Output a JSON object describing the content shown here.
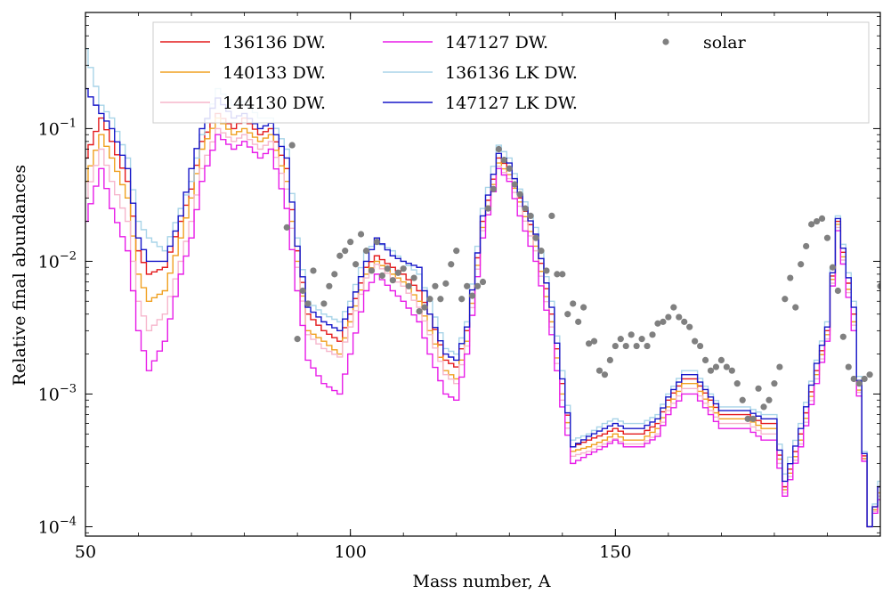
{
  "chart_data": {
    "type": "line",
    "title": "",
    "xlabel": "Mass number, A",
    "ylabel": "Relative final abundances",
    "xlim": [
      50,
      200
    ],
    "ylim": [
      8.5e-05,
      0.75
    ],
    "yscale": "log",
    "grid": false,
    "legend_placement": "top",
    "legend_columns": 3,
    "x_ticks": [
      {
        "value": 50,
        "label": "50"
      },
      {
        "value": 100,
        "label": "100"
      },
      {
        "value": 150,
        "label": "150"
      }
    ],
    "y_ticks": [
      {
        "value": 0.0001,
        "base": "10",
        "exp": "−4"
      },
      {
        "value": 0.001,
        "base": "10",
        "exp": "−3"
      },
      {
        "value": 0.01,
        "base": "10",
        "exp": "−2"
      },
      {
        "value": 0.1,
        "base": "10",
        "exp": "−1"
      }
    ],
    "series_anchor_x": [
      50,
      53,
      55,
      58,
      60,
      62,
      65,
      68,
      70,
      72,
      75,
      78,
      80,
      83,
      85,
      88,
      90,
      92,
      95,
      98,
      100,
      103,
      105,
      108,
      110,
      113,
      115,
      118,
      120,
      122,
      125,
      128,
      130,
      132,
      135,
      138,
      140,
      142,
      145,
      148,
      150,
      152,
      155,
      158,
      160,
      163,
      165,
      168,
      170,
      172,
      175,
      178,
      180,
      182,
      185,
      188,
      190,
      192,
      195,
      198,
      200
    ],
    "series": [
      {
        "name": "136136 DW.",
        "color": "#e41a1c",
        "style": "step",
        "y": [
          0.06,
          0.12,
          0.08,
          0.04,
          0.012,
          0.008,
          0.009,
          0.02,
          0.035,
          0.08,
          0.13,
          0.1,
          0.12,
          0.09,
          0.1,
          0.05,
          0.012,
          0.004,
          0.003,
          0.0025,
          0.004,
          0.009,
          0.011,
          0.009,
          0.008,
          0.006,
          0.004,
          0.0018,
          0.0016,
          0.003,
          0.02,
          0.06,
          0.05,
          0.03,
          0.015,
          0.004,
          0.0012,
          0.0004,
          0.00045,
          0.0005,
          0.00055,
          0.0005,
          0.0005,
          0.0006,
          0.0009,
          0.0013,
          0.0013,
          0.0009,
          0.0007,
          0.0007,
          0.0007,
          0.0006,
          0.0006,
          0.0002,
          0.0005,
          0.0015,
          0.003,
          0.02,
          0.004,
          0.0001,
          0.0002
        ]
      },
      {
        "name": "140133 DW.",
        "color": "#f0a020",
        "style": "step",
        "y": [
          0.04,
          0.09,
          0.06,
          0.03,
          0.008,
          0.005,
          0.006,
          0.015,
          0.03,
          0.07,
          0.12,
          0.09,
          0.1,
          0.08,
          0.09,
          0.04,
          0.01,
          0.003,
          0.0025,
          0.002,
          0.0035,
          0.008,
          0.01,
          0.008,
          0.007,
          0.005,
          0.003,
          0.0015,
          0.0013,
          0.0025,
          0.018,
          0.055,
          0.045,
          0.028,
          0.013,
          0.0035,
          0.001,
          0.00037,
          0.0004,
          0.00045,
          0.0005,
          0.00045,
          0.00045,
          0.00055,
          0.0008,
          0.0012,
          0.0012,
          0.0008,
          0.00065,
          0.00065,
          0.00065,
          0.00055,
          0.00055,
          0.00019,
          0.00045,
          0.0014,
          0.0028,
          0.019,
          0.0035,
          0.0001,
          0.00018
        ]
      },
      {
        "name": "144130 DW.",
        "color": "#f6b6cc",
        "style": "step",
        "y": [
          0.03,
          0.07,
          0.04,
          0.02,
          0.005,
          0.003,
          0.004,
          0.01,
          0.02,
          0.05,
          0.1,
          0.08,
          0.09,
          0.07,
          0.08,
          0.035,
          0.009,
          0.0028,
          0.0022,
          0.0019,
          0.0032,
          0.0075,
          0.0095,
          0.0075,
          0.0065,
          0.0045,
          0.0028,
          0.0014,
          0.0012,
          0.0023,
          0.017,
          0.052,
          0.042,
          0.026,
          0.012,
          0.0032,
          0.0009,
          0.00034,
          0.00037,
          0.00042,
          0.00046,
          0.00042,
          0.00042,
          0.0005,
          0.00075,
          0.0011,
          0.0011,
          0.00075,
          0.0006,
          0.0006,
          0.0006,
          0.0005,
          0.0005,
          0.00018,
          0.00042,
          0.0013,
          0.0026,
          0.018,
          0.0033,
          0.0001,
          0.00017
        ]
      },
      {
        "name": "147127 DW.",
        "color": "#e81ce8",
        "style": "step",
        "y": [
          0.02,
          0.05,
          0.025,
          0.012,
          0.003,
          0.0015,
          0.0025,
          0.008,
          0.015,
          0.04,
          0.09,
          0.07,
          0.08,
          0.06,
          0.07,
          0.025,
          0.006,
          0.0018,
          0.0012,
          0.001,
          0.002,
          0.006,
          0.008,
          0.006,
          0.005,
          0.0035,
          0.002,
          0.001,
          0.0009,
          0.002,
          0.015,
          0.05,
          0.04,
          0.022,
          0.01,
          0.0028,
          0.0008,
          0.0003,
          0.00035,
          0.0004,
          0.00045,
          0.0004,
          0.0004,
          0.00048,
          0.0007,
          0.001,
          0.001,
          0.0007,
          0.00055,
          0.00055,
          0.00055,
          0.00045,
          0.00045,
          0.00017,
          0.0004,
          0.0012,
          0.0025,
          0.017,
          0.003,
          0.0001,
          0.00016
        ]
      },
      {
        "name": "136136 LK DW.",
        "color": "#a8d4e8",
        "style": "step",
        "y": [
          0.4,
          0.15,
          0.12,
          0.06,
          0.02,
          0.015,
          0.012,
          0.025,
          0.04,
          0.09,
          0.2,
          0.15,
          0.16,
          0.12,
          0.12,
          0.07,
          0.015,
          0.005,
          0.004,
          0.0035,
          0.005,
          0.012,
          0.014,
          0.012,
          0.01,
          0.008,
          0.005,
          0.0022,
          0.002,
          0.0035,
          0.025,
          0.075,
          0.06,
          0.035,
          0.018,
          0.005,
          0.0015,
          0.00045,
          0.0005,
          0.0006,
          0.00065,
          0.0006,
          0.0006,
          0.0007,
          0.001,
          0.0015,
          0.0015,
          0.001,
          0.0008,
          0.0008,
          0.0008,
          0.0007,
          0.0007,
          0.00025,
          0.0006,
          0.0018,
          0.0035,
          0.022,
          0.005,
          0.0001,
          0.00022
        ]
      },
      {
        "name": "147127 LK DW.",
        "color": "#1616c8",
        "style": "step",
        "y": [
          0.2,
          0.13,
          0.1,
          0.05,
          0.015,
          0.01,
          0.01,
          0.022,
          0.05,
          0.1,
          0.17,
          0.12,
          0.13,
          0.1,
          0.11,
          0.06,
          0.013,
          0.0045,
          0.0035,
          0.003,
          0.0045,
          0.01,
          0.015,
          0.011,
          0.01,
          0.009,
          0.004,
          0.002,
          0.0018,
          0.0032,
          0.022,
          0.065,
          0.055,
          0.032,
          0.016,
          0.0045,
          0.0013,
          0.0004,
          0.00048,
          0.00055,
          0.0006,
          0.00055,
          0.00055,
          0.00065,
          0.00095,
          0.0014,
          0.0014,
          0.00095,
          0.00075,
          0.00075,
          0.00075,
          0.00065,
          0.00065,
          0.00022,
          0.00055,
          0.0017,
          0.0032,
          0.021,
          0.0045,
          0.0001,
          0.0002
        ]
      }
    ],
    "solar": {
      "name": "solar",
      "color": "#808080",
      "style": "markers",
      "points": [
        [
          88,
          0.018
        ],
        [
          89,
          0.075
        ],
        [
          90,
          0.0026
        ],
        [
          91,
          0.006
        ],
        [
          92,
          0.0048
        ],
        [
          93,
          0.0085
        ],
        [
          95,
          0.0048
        ],
        [
          96,
          0.0065
        ],
        [
          97,
          0.008
        ],
        [
          98,
          0.011
        ],
        [
          99,
          0.012
        ],
        [
          100,
          0.014
        ],
        [
          101,
          0.0095
        ],
        [
          102,
          0.016
        ],
        [
          103,
          0.012
        ],
        [
          104,
          0.0085
        ],
        [
          105,
          0.014
        ],
        [
          106,
          0.0078
        ],
        [
          107,
          0.0088
        ],
        [
          108,
          0.0072
        ],
        [
          109,
          0.0082
        ],
        [
          110,
          0.0088
        ],
        [
          111,
          0.0065
        ],
        [
          112,
          0.0075
        ],
        [
          113,
          0.0042
        ],
        [
          114,
          0.0045
        ],
        [
          115,
          0.0052
        ],
        [
          116,
          0.0065
        ],
        [
          117,
          0.0052
        ],
        [
          118,
          0.0068
        ],
        [
          119,
          0.0095
        ],
        [
          120,
          0.012
        ],
        [
          121,
          0.0052
        ],
        [
          122,
          0.0065
        ],
        [
          123,
          0.0055
        ],
        [
          124,
          0.0065
        ],
        [
          125,
          0.007
        ],
        [
          126,
          0.025
        ],
        [
          127,
          0.035
        ],
        [
          128,
          0.07
        ],
        [
          129,
          0.058
        ],
        [
          130,
          0.05
        ],
        [
          131,
          0.038
        ],
        [
          132,
          0.032
        ],
        [
          133,
          0.025
        ],
        [
          134,
          0.022
        ],
        [
          135,
          0.015
        ],
        [
          136,
          0.012
        ],
        [
          137,
          0.0085
        ],
        [
          138,
          0.022
        ],
        [
          139,
          0.008
        ],
        [
          140,
          0.008
        ],
        [
          141,
          0.004
        ],
        [
          142,
          0.0048
        ],
        [
          143,
          0.0035
        ],
        [
          144,
          0.0045
        ],
        [
          145,
          0.0024
        ],
        [
          146,
          0.0025
        ],
        [
          147,
          0.0015
        ],
        [
          148,
          0.0014
        ],
        [
          149,
          0.0018
        ],
        [
          150,
          0.0023
        ],
        [
          151,
          0.0026
        ],
        [
          152,
          0.0023
        ],
        [
          153,
          0.0028
        ],
        [
          154,
          0.0023
        ],
        [
          155,
          0.0026
        ],
        [
          156,
          0.0023
        ],
        [
          157,
          0.0028
        ],
        [
          158,
          0.0034
        ],
        [
          159,
          0.0035
        ],
        [
          160,
          0.0038
        ],
        [
          161,
          0.0045
        ],
        [
          162,
          0.0038
        ],
        [
          163,
          0.0035
        ],
        [
          164,
          0.0032
        ],
        [
          165,
          0.0025
        ],
        [
          166,
          0.0023
        ],
        [
          167,
          0.0018
        ],
        [
          168,
          0.0015
        ],
        [
          169,
          0.0016
        ],
        [
          170,
          0.0018
        ],
        [
          171,
          0.0016
        ],
        [
          172,
          0.0015
        ],
        [
          173,
          0.0012
        ],
        [
          174,
          0.0009
        ],
        [
          175,
          0.00065
        ],
        [
          176,
          0.00065
        ],
        [
          177,
          0.0011
        ],
        [
          178,
          0.0008
        ],
        [
          179,
          0.0009
        ],
        [
          180,
          0.0012
        ],
        [
          181,
          0.0016
        ],
        [
          182,
          0.0052
        ],
        [
          183,
          0.0075
        ],
        [
          184,
          0.0045
        ],
        [
          185,
          0.0095
        ],
        [
          186,
          0.013
        ],
        [
          187,
          0.019
        ],
        [
          188,
          0.02
        ],
        [
          189,
          0.021
        ],
        [
          190,
          0.015
        ],
        [
          191,
          0.009
        ],
        [
          192,
          0.006
        ],
        [
          193,
          0.0027
        ],
        [
          194,
          0.0016
        ],
        [
          195,
          0.0013
        ],
        [
          196,
          0.0012
        ],
        [
          197,
          0.0013
        ],
        [
          198,
          0.0014
        ],
        [
          200,
          0.0065
        ]
      ]
    }
  }
}
